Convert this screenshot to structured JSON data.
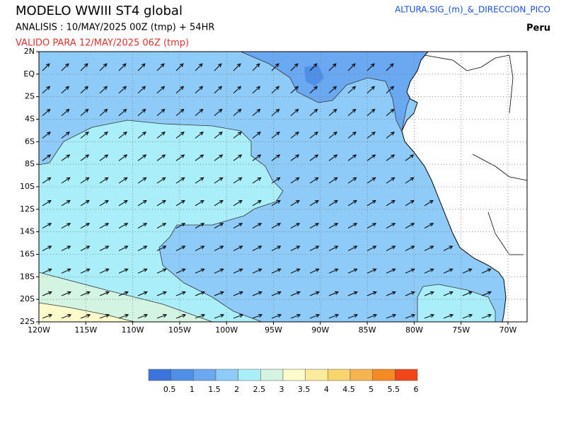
{
  "header": {
    "title": "MODELO  WWIII ST4 global",
    "analysis": "ANALISIS : 10/MAY/2025 00Z  (tmp) + 54HR",
    "valid": "VALIDO PARA  12/MAY/2025 06Z  (tmp)",
    "variable": "ALTURA.SIG_(m)_&_DIRECCION_PICO",
    "region": "Peru"
  },
  "map": {
    "lat_labels": [
      "2N",
      "EQ",
      "2S",
      "4S",
      "6S",
      "8S",
      "10S",
      "12S",
      "14S",
      "16S",
      "18S",
      "20S",
      "22S"
    ],
    "lon_labels": [
      "120W",
      "115W",
      "110W",
      "105W",
      "100W",
      "95W",
      "90W",
      "85W",
      "80W",
      "75W",
      "70W"
    ]
  },
  "legend": {
    "labels": [
      "0.5",
      "1",
      "1.5",
      "2",
      "2.5",
      "3",
      "3.5",
      "4",
      "4.5",
      "5",
      "5.5",
      "6"
    ],
    "colors": [
      "#3c74dc",
      "#4f8fe8",
      "#6aa8f2",
      "#8ecbf8",
      "#aaeefa",
      "#d4f4e2",
      "#fcfbcc",
      "#fbeb9c",
      "#f8d46c",
      "#f5b450",
      "#f38a24",
      "#f0461a"
    ]
  }
}
